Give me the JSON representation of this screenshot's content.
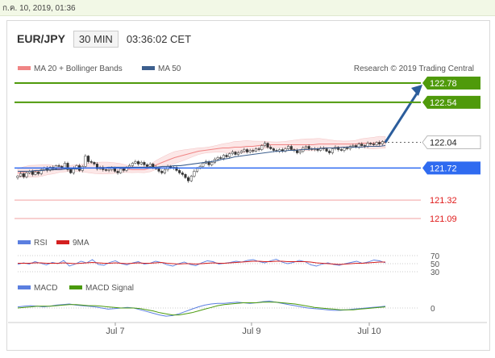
{
  "topbar": {
    "datetime": "ก.ค. 10, 2019, 01:36"
  },
  "header": {
    "symbol": "EUR/JPY",
    "timeframe": "30 MIN",
    "time": "03:36:02 CET"
  },
  "colors": {
    "up": "#4f9a0b",
    "blue": "#2f6bf0",
    "red": "#e01b1b",
    "arrow": "#2b5d9c",
    "ma20": "#f08585",
    "ma50": "#3d5f8e",
    "rsi": "#5b7fe0",
    "rsi_ma": "#d42020",
    "macd": "#5b7fe0",
    "macd_signal": "#4a9a0d"
  },
  "chart_data": [
    {
      "type": "candlestick",
      "title": "EUR/JPY 30 MIN",
      "legend": [
        "MA 20 + Bollinger Bands",
        "MA 50"
      ],
      "credit": "Research © 2019 Trading Central",
      "x_ticks": [
        "Jul 7",
        "Jul 9",
        "Jul 10"
      ],
      "ylim": [
        121.0,
        122.85
      ],
      "levels": [
        {
          "value": 122.78,
          "label": "122.78",
          "kind": "up"
        },
        {
          "value": 122.54,
          "label": "122.54",
          "kind": "up"
        },
        {
          "value": 122.04,
          "label": "122.04",
          "kind": "current"
        },
        {
          "value": 121.72,
          "label": "121.72",
          "kind": "blue"
        },
        {
          "value": 121.32,
          "label": "121.32",
          "kind": "red"
        },
        {
          "value": 121.09,
          "label": "121.09",
          "kind": "red"
        }
      ],
      "close": [
        121.62,
        121.65,
        121.61,
        121.66,
        121.68,
        121.64,
        121.67,
        121.65,
        121.7,
        121.72,
        121.69,
        121.73,
        121.71,
        121.75,
        121.74,
        121.72,
        121.78,
        121.7,
        121.66,
        121.72,
        121.75,
        121.69,
        121.74,
        121.87,
        121.8,
        121.79,
        121.77,
        121.71,
        121.73,
        121.7,
        121.69,
        121.7,
        121.72,
        121.68,
        121.66,
        121.71,
        121.69,
        121.73,
        121.75,
        121.78,
        121.8,
        121.77,
        121.79,
        121.76,
        121.74,
        121.77,
        121.73,
        121.71,
        121.68,
        121.66,
        121.7,
        121.74,
        121.72,
        121.73,
        121.69,
        121.66,
        121.64,
        121.6,
        121.56,
        121.62,
        121.68,
        121.72,
        121.74,
        121.78,
        121.8,
        121.76,
        121.79,
        121.83,
        121.85,
        121.84,
        121.88,
        121.86,
        121.9,
        121.92,
        121.89,
        121.91,
        121.93,
        121.95,
        121.92,
        121.94,
        121.93,
        121.96,
        121.95,
        122.0,
        122.03,
        121.98,
        121.96,
        121.94,
        121.93,
        121.95,
        121.93,
        121.96,
        121.99,
        121.95,
        121.94,
        121.91,
        121.93,
        121.97,
        121.99,
        121.96,
        121.95,
        121.96,
        121.94,
        121.97,
        121.96,
        121.93,
        121.91,
        121.96,
        121.98,
        121.95,
        121.94,
        121.97,
        121.96,
        121.99,
        122.0,
        121.98,
        122.02,
        122.0,
        121.99,
        122.03,
        122.02,
        122.01,
        122.04,
        122.02,
        122.05,
        122.04
      ],
      "ma20": [
        121.66,
        121.67,
        121.68,
        121.68,
        121.69,
        121.7,
        121.7,
        121.71,
        121.71,
        121.72,
        121.72,
        121.72,
        121.72,
        121.72,
        121.72,
        121.72,
        121.72,
        121.72,
        121.71,
        121.7,
        121.7,
        121.7,
        121.72,
        121.76,
        121.79,
        121.82,
        121.85,
        121.87,
        121.89,
        121.91,
        121.93,
        121.94,
        121.95,
        121.96,
        121.97,
        121.97,
        121.98,
        121.98,
        121.99,
        121.99,
        122.0,
        122.01,
        122.01,
        122.01,
        122.01,
        122.01,
        122.01,
        122.01,
        122.01,
        122.01,
        122.02,
        122.02,
        122.02,
        122.02,
        122.02,
        122.02,
        122.02,
        122.03,
        122.03,
        122.03,
        122.04,
        122.04
      ],
      "ma50": [
        121.68,
        121.68,
        121.68,
        121.69,
        121.69,
        121.7,
        121.7,
        121.7,
        121.71,
        121.71,
        121.71,
        121.72,
        121.72,
        121.72,
        121.72,
        121.73,
        121.73,
        121.73,
        121.73,
        121.73,
        121.73,
        121.73,
        121.73,
        121.73,
        121.74,
        121.74,
        121.75,
        121.75,
        121.76,
        121.77,
        121.78,
        121.79,
        121.8,
        121.81,
        121.83,
        121.84,
        121.86,
        121.87,
        121.88,
        121.89,
        121.9,
        121.91,
        121.92,
        121.93,
        121.93,
        121.94,
        121.94,
        121.95,
        121.95,
        121.96,
        121.96,
        121.97,
        121.97,
        121.97,
        121.98,
        121.98,
        121.98,
        121.98,
        121.99,
        121.99,
        121.99,
        122.0
      ]
    },
    {
      "type": "line",
      "legend": [
        "RSI",
        "9MA"
      ],
      "y_ticks": [
        "70",
        "50",
        "30"
      ],
      "ylim": [
        20,
        80
      ],
      "rsi": [
        48,
        52,
        49,
        55,
        51,
        47,
        53,
        50,
        58,
        44,
        49,
        56,
        52,
        60,
        48,
        46,
        53,
        57,
        50,
        47,
        52,
        55,
        49,
        51,
        56,
        53,
        47,
        44,
        50,
        54,
        48,
        45,
        52,
        57,
        55,
        49,
        51,
        53,
        56,
        54,
        58,
        60,
        55,
        52,
        57,
        61,
        54,
        50,
        53,
        58,
        55,
        47,
        44,
        49,
        52,
        48,
        46,
        50,
        53,
        56,
        51,
        54,
        59,
        57,
        52
      ],
      "rsi_ma": [
        51,
        51,
        51,
        52,
        52,
        51,
        51,
        51,
        52,
        51,
        50,
        51,
        52,
        53,
        52,
        51,
        51,
        52,
        51,
        50,
        51,
        52,
        51,
        51,
        52,
        53,
        51,
        50,
        49,
        50,
        50,
        49,
        50,
        51,
        52,
        51,
        51,
        52,
        53,
        54,
        55,
        56,
        56,
        55,
        55,
        56,
        56,
        55,
        55,
        55,
        55,
        54,
        52,
        51,
        50,
        49,
        48,
        49,
        50,
        51,
        51,
        52,
        53,
        54,
        54
      ]
    },
    {
      "type": "line",
      "legend": [
        "MACD",
        "MACD Signal"
      ],
      "y_ticks": [
        "0"
      ],
      "ylim": [
        -0.25,
        0.25
      ],
      "macd": [
        0.02,
        0.03,
        0.04,
        0.03,
        0.02,
        0.03,
        0.05,
        0.06,
        0.07,
        0.05,
        0.04,
        0.03,
        0.02,
        0.0,
        -0.02,
        -0.01,
        0.0,
        0.01,
        0.0,
        -0.03,
        -0.06,
        -0.09,
        -0.12,
        -0.14,
        -0.13,
        -0.1,
        -0.06,
        -0.02,
        0.02,
        0.05,
        0.07,
        0.08,
        0.08,
        0.09,
        0.1,
        0.09,
        0.08,
        0.09,
        0.11,
        0.12,
        0.1,
        0.08,
        0.06,
        0.04,
        0.02,
        0.0,
        -0.01,
        -0.02,
        -0.03,
        -0.04,
        -0.04,
        -0.03,
        -0.02,
        -0.01,
        0.0,
        0.01,
        0.02,
        0.03
      ],
      "signal": [
        0.0,
        0.01,
        0.02,
        0.03,
        0.03,
        0.03,
        0.04,
        0.05,
        0.06,
        0.06,
        0.05,
        0.04,
        0.04,
        0.03,
        0.02,
        0.01,
        0.0,
        0.0,
        0.0,
        -0.01,
        -0.03,
        -0.05,
        -0.08,
        -0.1,
        -0.12,
        -0.12,
        -0.1,
        -0.08,
        -0.05,
        -0.02,
        0.01,
        0.04,
        0.06,
        0.07,
        0.08,
        0.09,
        0.09,
        0.09,
        0.1,
        0.1,
        0.1,
        0.09,
        0.08,
        0.07,
        0.05,
        0.03,
        0.01,
        0.0,
        -0.01,
        -0.02,
        -0.03,
        -0.03,
        -0.03,
        -0.02,
        -0.01,
        0.0,
        0.01,
        0.02
      ]
    }
  ]
}
